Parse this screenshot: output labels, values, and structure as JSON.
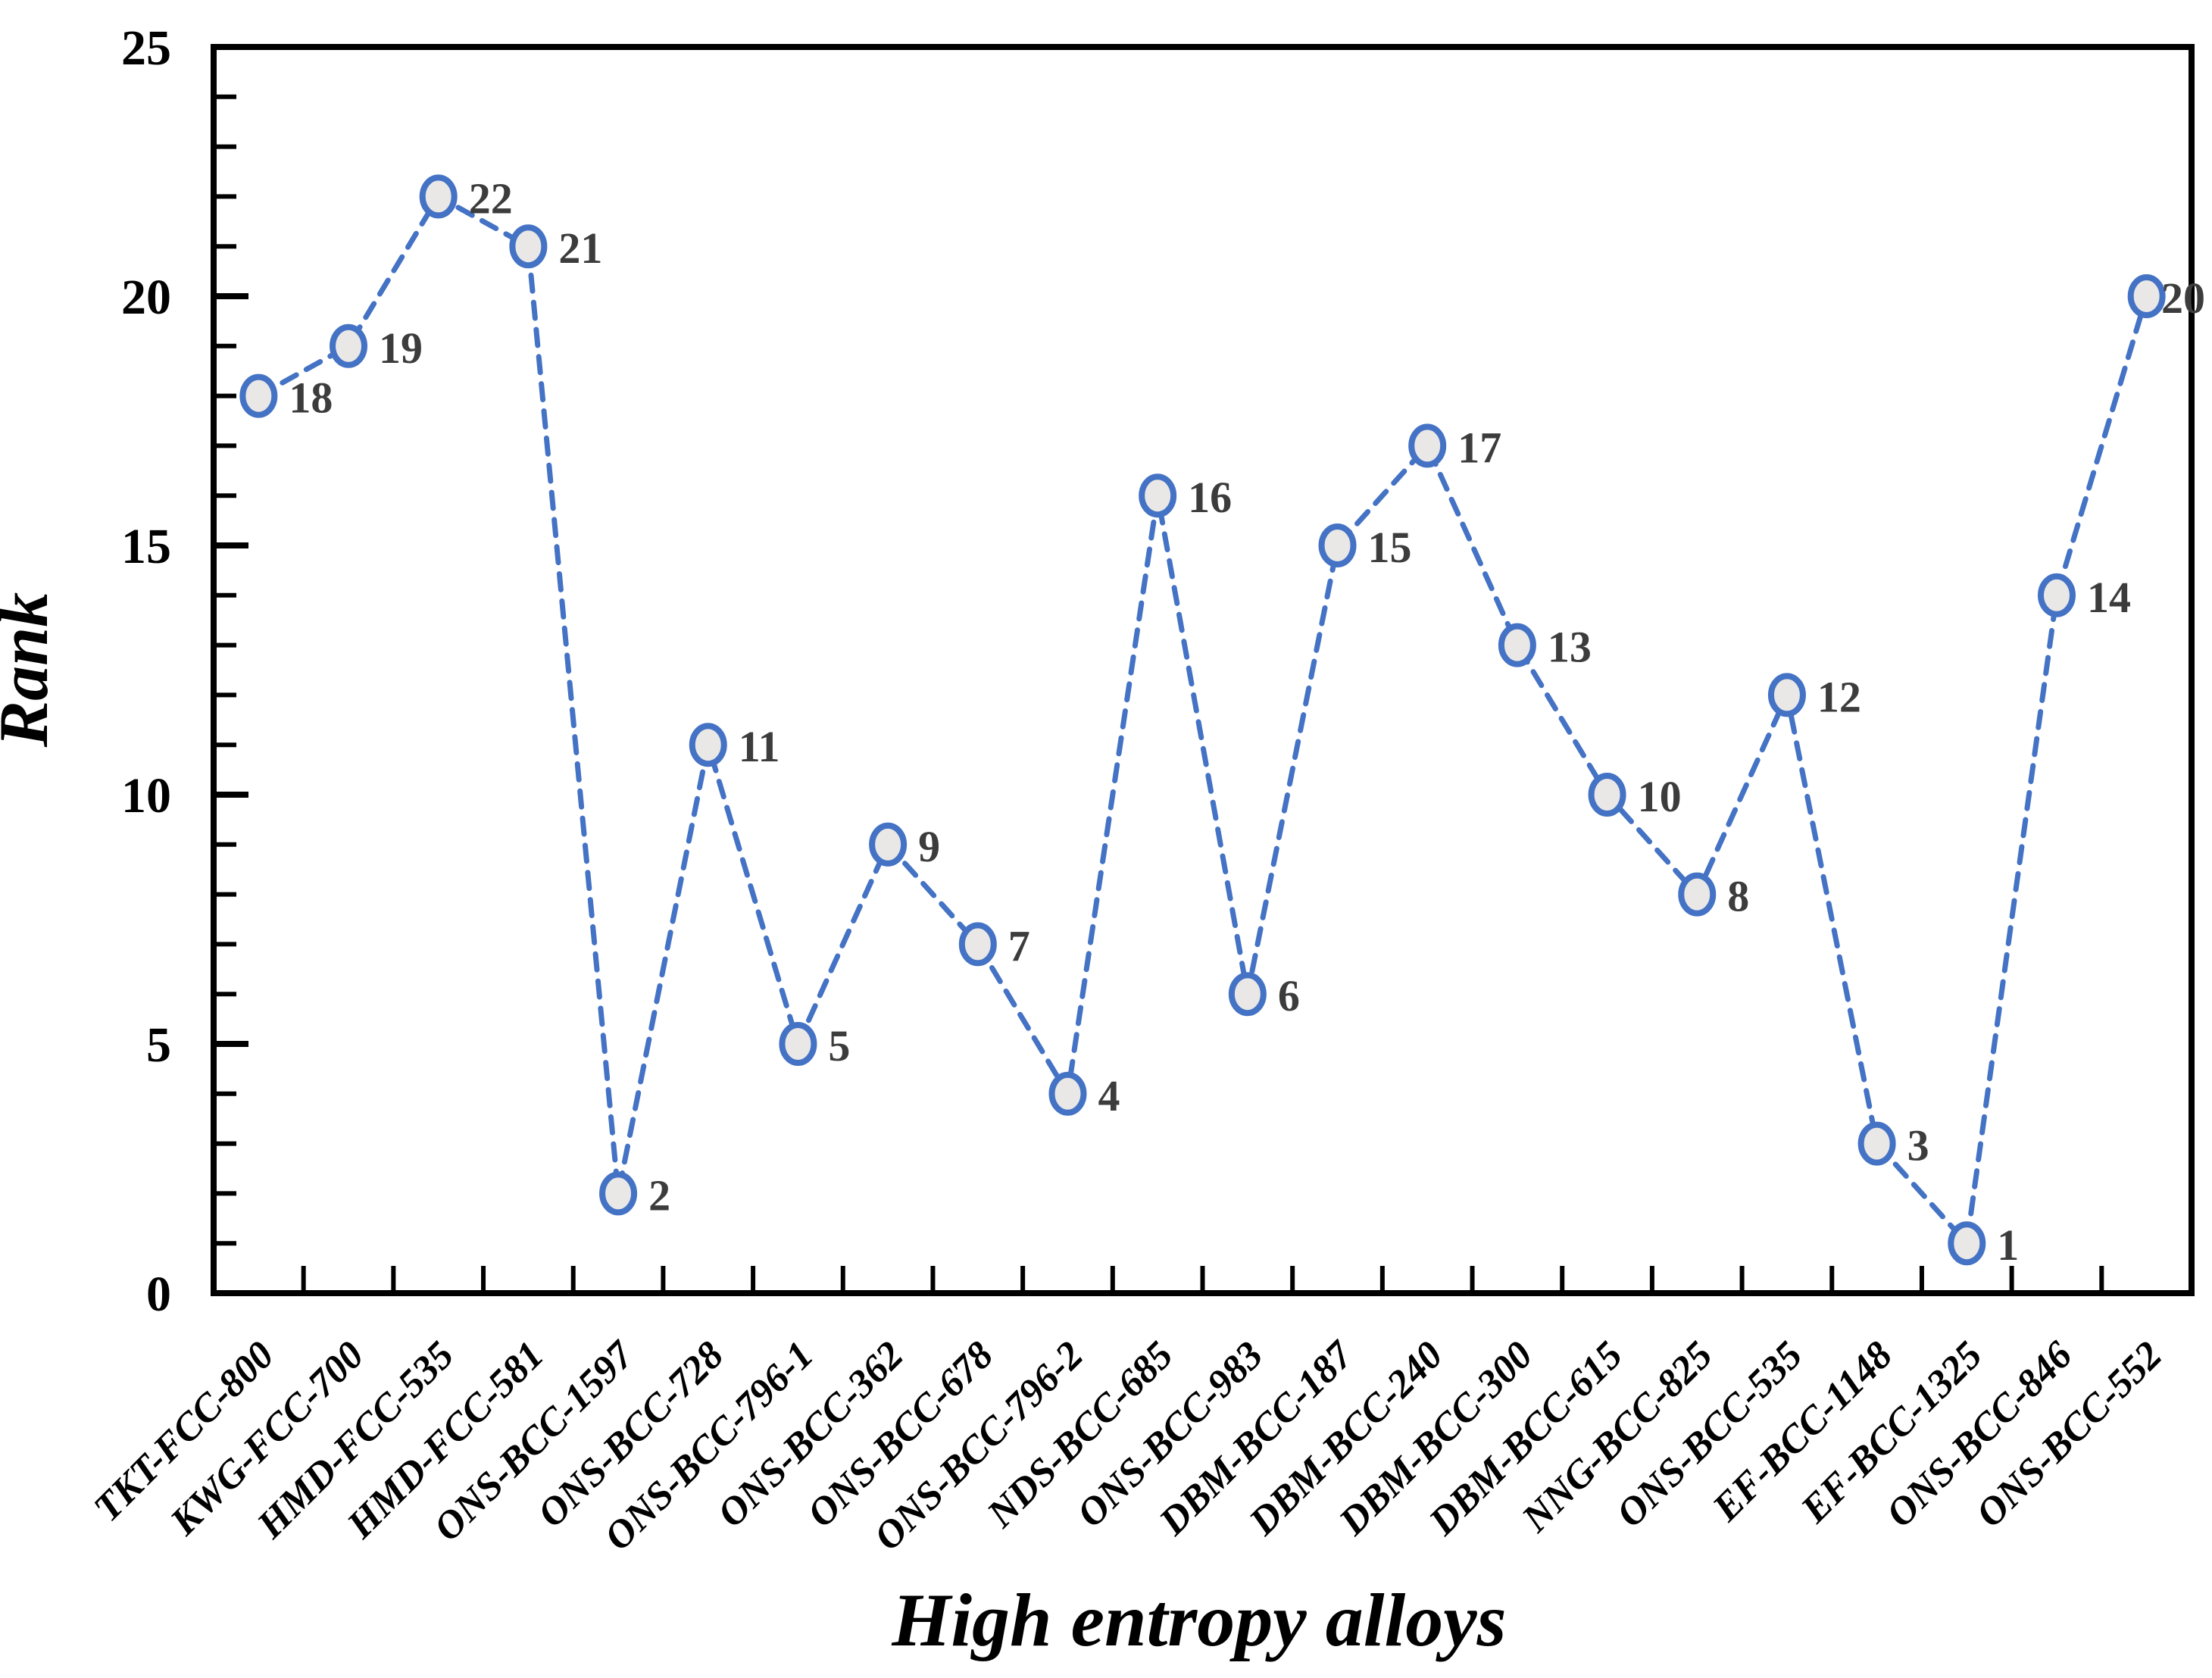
{
  "chart_data": {
    "type": "line",
    "line_style": "dashed",
    "marker": "circle",
    "title": "",
    "xlabel": "High entropy alloys",
    "ylabel": "Rank",
    "categories": [
      "TKT-FCC-800",
      "KWG-FCC-700",
      "HMD-FCC-535",
      "HMD-FCC-581",
      "ONS-BCC-1597",
      "ONS-BCC-728",
      "ONS-BCC-796-1",
      "ONS-BCC-362",
      "ONS-BCC-678",
      "ONS-BCC-796-2",
      "NDS-BCC-685",
      "ONS-BCC-983",
      "DBM-BCC-187",
      "DBM-BCC-240",
      "DBM-BCC-300",
      "DBM-BCC-615",
      "NNG-BCC-825",
      "ONS-BCC-535",
      "EF-BCC-1148",
      "EF-BCC-1325",
      "ONS-BCC-846",
      "ONS-BCC-552"
    ],
    "values": [
      18,
      19,
      22,
      21,
      2,
      11,
      5,
      9,
      7,
      4,
      16,
      6,
      15,
      17,
      13,
      10,
      8,
      12,
      3,
      1,
      14,
      20
    ],
    "data_labels": [
      "18",
      "19",
      "22",
      "21",
      "2",
      "11",
      "5",
      "9",
      "7",
      "4",
      "16",
      "6",
      "15",
      "17",
      "13",
      "10",
      "8",
      "12",
      "3",
      "1",
      "14",
      "20"
    ],
    "ylim": [
      0,
      25
    ],
    "y_major_step": 5,
    "y_minor_step": 1,
    "y_tick_labels": [
      "0",
      "5",
      "10",
      "15",
      "20",
      "25"
    ],
    "grid": false,
    "legend": "none",
    "colors": {
      "line": "#4472C4",
      "marker_fill": "#E9E8E6",
      "marker_stroke": "#4472C4",
      "data_label": "#3C3C3C",
      "axis": "#000000",
      "background": "#FFFFFF"
    }
  }
}
